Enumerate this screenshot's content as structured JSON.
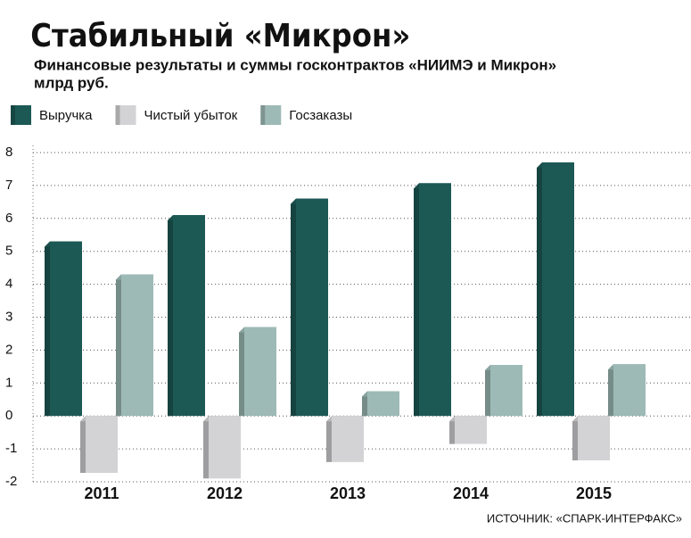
{
  "chart_data": {
    "type": "bar",
    "title": "Стабильный «Микрон»",
    "subtitle": "Финансовые результаты и суммы госконтрактов «НИИМЭ и Микрон»",
    "y_label": "млрд руб.",
    "source": "ИСТОЧНИК: «СПАРК-ИНТЕРФАКС»",
    "categories": [
      "2011",
      "2012",
      "2013",
      "2014",
      "2015"
    ],
    "series": [
      {
        "name": "Выручка",
        "color": "#1c5955",
        "values": [
          5.3,
          6.1,
          6.6,
          7.07,
          7.7
        ]
      },
      {
        "name": "Чистый убыток",
        "color": "#d3d3d5",
        "values": [
          -1.73,
          -1.9,
          -1.4,
          -0.85,
          -1.35
        ]
      },
      {
        "name": "Госзаказы",
        "color": "#9dbab6",
        "values": [
          4.3,
          2.7,
          0.75,
          1.55,
          1.57
        ]
      }
    ],
    "ylim": [
      -2,
      8
    ],
    "yticks": [
      -2,
      -1,
      0,
      1,
      2,
      3,
      4,
      5,
      6,
      7,
      8
    ],
    "grid": true,
    "legend": "top-left"
  }
}
